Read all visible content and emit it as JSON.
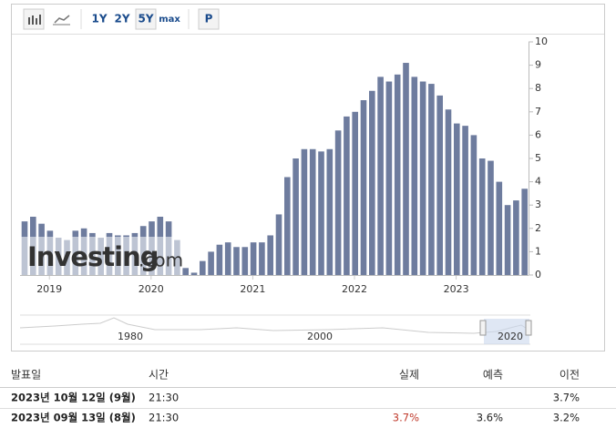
{
  "toolbar": {
    "ranges": [
      "1Y",
      "2Y",
      "5Y",
      "max"
    ],
    "print": "P"
  },
  "chart_data": {
    "type": "bar",
    "color": "#6e7c9e",
    "categories": [
      null,
      null,
      null,
      null,
      "2019",
      null,
      null,
      null,
      null,
      null,
      null,
      null,
      null,
      null,
      null,
      null,
      "2020",
      null,
      null,
      null,
      null,
      null,
      null,
      null,
      null,
      null,
      null,
      null,
      "2021",
      null,
      null,
      null,
      null,
      null,
      null,
      null,
      null,
      null,
      null,
      null,
      "2022",
      null,
      null,
      null,
      null,
      null,
      null,
      null,
      null,
      null,
      null,
      null,
      "2023",
      null,
      null,
      null,
      null,
      null,
      null,
      null
    ],
    "values": [
      2.3,
      2.5,
      2.2,
      1.9,
      1.6,
      1.5,
      1.9,
      2.0,
      1.8,
      1.6,
      1.8,
      1.7,
      1.7,
      1.8,
      2.1,
      2.3,
      2.5,
      2.3,
      1.5,
      0.3,
      0.1,
      0.6,
      1.0,
      1.3,
      1.4,
      1.2,
      1.2,
      1.4,
      1.4,
      1.7,
      2.6,
      4.2,
      5.0,
      5.4,
      5.4,
      5.3,
      5.4,
      6.2,
      6.8,
      7.0,
      7.5,
      7.9,
      8.5,
      8.3,
      8.6,
      9.1,
      8.5,
      8.3,
      8.2,
      7.7,
      7.1,
      6.5,
      6.4,
      6.0,
      5.0,
      4.9,
      4.0,
      3.0,
      3.2,
      3.7
    ],
    "ylim": [
      0,
      10
    ],
    "yticks": [
      0,
      1,
      2,
      3,
      4,
      5,
      6,
      7,
      8,
      9,
      10
    ],
    "watermark": {
      "brand": "Investing",
      "suffix": ".com"
    }
  },
  "navigator": {
    "labels": [
      "1980",
      "2000",
      "2020"
    ]
  },
  "table": {
    "headers": [
      "발표일",
      "시간",
      "실제",
      "예측",
      "이전"
    ],
    "rows": [
      {
        "date": "2023년 10월 12일 (9월)",
        "time": "21:30",
        "previous": "3.7%"
      },
      {
        "date": "2023년 09월 13일 (8월)",
        "time": "21:30",
        "actual": "3.7%",
        "forecast": "3.6%",
        "previous": "3.2%"
      }
    ]
  }
}
